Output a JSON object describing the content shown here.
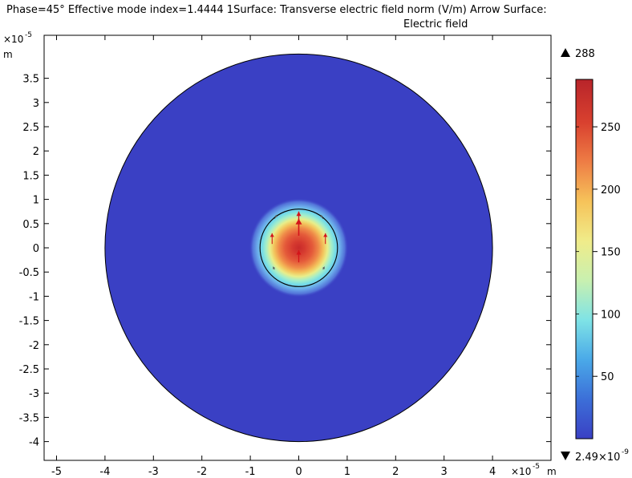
{
  "title": {
    "line1": "Phase=45° Effective mode index=1.4444 1Surface: Transverse electric field norm (V/m)  Arrow Surface:",
    "line2": "Electric field"
  },
  "chart_data": {
    "type": "heatmap",
    "title": "Phase=45° Effective mode index=1.4444 1Surface: Transverse electric field norm (V/m)  Arrow Surface: Electric field",
    "x_axis": {
      "range": [
        -5.4,
        5.2
      ],
      "ticks": [
        -5,
        -4,
        -3,
        -2,
        -1,
        0,
        1,
        2,
        3,
        4
      ],
      "tick_labels": [
        "-5",
        "-4",
        "-3",
        "-2",
        "-1",
        "0",
        "1",
        "2",
        "3",
        "4"
      ],
      "multiplier": "×10",
      "exponent": "-5",
      "unit": "m"
    },
    "y_axis": {
      "range": [
        -4.4,
        4.4
      ],
      "ticks": [
        3.5,
        3,
        2.5,
        2,
        1.5,
        1,
        0.5,
        0,
        -0.5,
        -1,
        -1.5,
        -2,
        -2.5,
        -3,
        -3.5,
        -4
      ],
      "tick_labels": [
        "3.5",
        "3",
        "2.5",
        "2",
        "1.5",
        "1",
        "0.5",
        "0",
        "-0.5",
        "-1",
        "-1.5",
        "-2",
        "-2.5",
        "-3",
        "-3.5",
        "-4"
      ],
      "multiplier": "×10",
      "exponent": "-5",
      "unit": "m"
    },
    "geometry": {
      "cladding_radius": 4,
      "core_radius": 0.8,
      "center": [
        0,
        0
      ]
    },
    "field": {
      "max": 288,
      "min_mantissa": "2.49×10",
      "min_exponent": "-9",
      "peak_value": 288,
      "background_value": 0
    },
    "colorbar": {
      "range": [
        0,
        288
      ],
      "ticks": [
        250,
        200,
        150,
        100,
        50
      ],
      "tick_labels": [
        "250",
        "200",
        "150",
        "100",
        "50"
      ],
      "max_label": "288",
      "colormap": "rainbow",
      "colors": [
        "#3a40c4",
        "#3c6fd8",
        "#4aa9e8",
        "#7fe3e6",
        "#c8f0b0",
        "#f0ec8a",
        "#f6c35a",
        "#ee7d45",
        "#d9412f",
        "#b8242a"
      ]
    },
    "arrows": [
      {
        "x": 0.0,
        "y": 0.25,
        "dx": 0.0,
        "dy": 0.35,
        "size": "large"
      },
      {
        "x": 0.0,
        "y": -0.3,
        "dx": 0.0,
        "dy": 0.25,
        "size": "medium"
      },
      {
        "x": 0.0,
        "y": 0.55,
        "dx": 0.0,
        "dy": 0.2,
        "size": "medium"
      },
      {
        "x": -0.55,
        "y": 0.08,
        "dx": 0.0,
        "dy": 0.22,
        "size": "small"
      },
      {
        "x": 0.55,
        "y": 0.08,
        "dx": 0.0,
        "dy": 0.22,
        "size": "small"
      },
      {
        "x": -0.5,
        "y": 0.6,
        "dx": 0.05,
        "dy": 0.08,
        "size": "tiny"
      },
      {
        "x": 0.5,
        "y": 0.6,
        "dx": -0.05,
        "dy": 0.08,
        "size": "tiny"
      },
      {
        "x": -0.5,
        "y": -0.45,
        "dx": -0.03,
        "dy": 0.06,
        "size": "tiny"
      },
      {
        "x": 0.5,
        "y": -0.45,
        "dx": 0.03,
        "dy": 0.06,
        "size": "tiny"
      }
    ]
  }
}
